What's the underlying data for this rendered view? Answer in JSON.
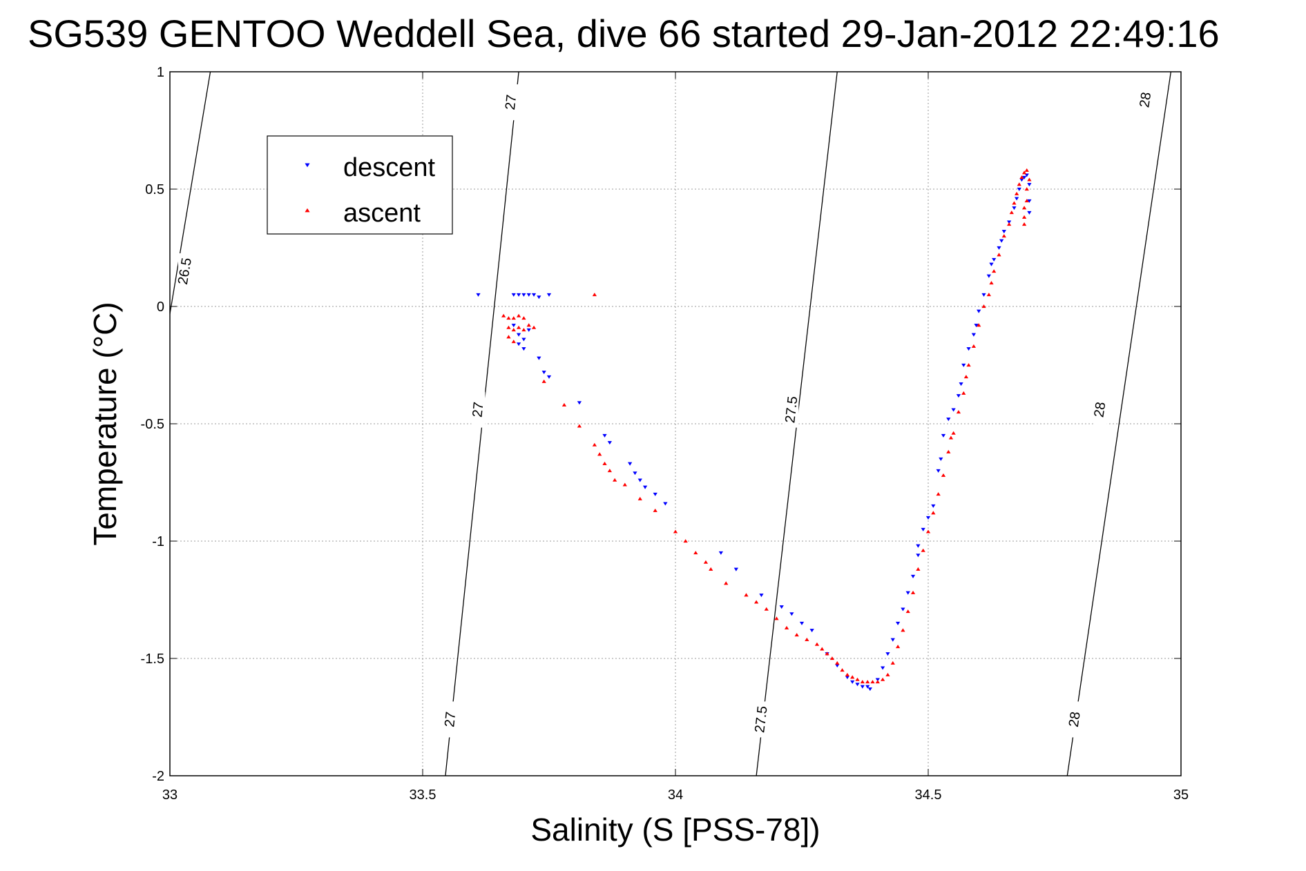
{
  "chart_data": {
    "type": "scatter",
    "title": "SG539 GENTOO Weddell Sea, dive 66 started 29-Jan-2012 22:49:16",
    "xlabel": "Salinity (S [PSS-78])",
    "ylabel": "Temperature (°C)",
    "xlim": [
      33,
      35
    ],
    "ylim": [
      -2,
      1
    ],
    "xticks": [
      33,
      33.5,
      34,
      34.5,
      35
    ],
    "xtick_labels": [
      "33",
      "33.5",
      "34",
      "34.5",
      "35"
    ],
    "yticks": [
      -2,
      -1.5,
      -1,
      -0.5,
      0,
      0.5,
      1
    ],
    "ytick_labels": [
      "-2",
      "-1.5",
      "-1",
      "-0.5",
      "0",
      "0.5",
      "1"
    ],
    "grid": true,
    "legend_position": "top-left",
    "density_contours": [
      {
        "level": "26.5",
        "points": [
          [
            33.08,
            1.0
          ],
          [
            32.99,
            -0.16
          ]
        ],
        "labels": [
          {
            "x": 33.03,
            "y": 0.15
          }
        ]
      },
      {
        "level": "27",
        "points": [
          [
            33.69,
            1.0
          ],
          [
            33.545,
            -2.0
          ]
        ],
        "labels": [
          {
            "x": 33.675,
            "y": 0.87
          },
          {
            "x": 33.61,
            "y": -0.44
          },
          {
            "x": 33.555,
            "y": -1.76
          }
        ]
      },
      {
        "level": "27.5",
        "points": [
          [
            34.32,
            1.0
          ],
          [
            34.16,
            -2.0
          ]
        ],
        "labels": [
          {
            "x": 34.23,
            "y": -0.44
          },
          {
            "x": 34.17,
            "y": -1.76
          }
        ]
      },
      {
        "level": "28",
        "points": [
          [
            34.98,
            1.0
          ],
          [
            34.775,
            -2.0
          ]
        ],
        "labels": [
          {
            "x": 34.93,
            "y": 0.88
          },
          {
            "x": 34.84,
            "y": -0.44
          },
          {
            "x": 34.79,
            "y": -1.76
          }
        ]
      }
    ],
    "series": [
      {
        "name": "descent",
        "color": "#0000ff",
        "marker": "triangle-down",
        "points": [
          [
            33.61,
            0.05
          ],
          [
            33.68,
            0.05
          ],
          [
            33.69,
            0.05
          ],
          [
            33.7,
            0.05
          ],
          [
            33.71,
            0.05
          ],
          [
            33.72,
            0.05
          ],
          [
            33.73,
            0.04
          ],
          [
            33.75,
            0.05
          ],
          [
            33.68,
            -0.08
          ],
          [
            33.69,
            -0.12
          ],
          [
            33.69,
            -0.16
          ],
          [
            33.7,
            -0.18
          ],
          [
            33.7,
            -0.14
          ],
          [
            33.71,
            -0.1
          ],
          [
            33.73,
            -0.22
          ],
          [
            33.74,
            -0.28
          ],
          [
            33.75,
            -0.3
          ],
          [
            33.81,
            -0.41
          ],
          [
            33.86,
            -0.55
          ],
          [
            33.87,
            -0.58
          ],
          [
            33.91,
            -0.67
          ],
          [
            33.92,
            -0.71
          ],
          [
            33.93,
            -0.74
          ],
          [
            33.94,
            -0.77
          ],
          [
            33.96,
            -0.8
          ],
          [
            33.98,
            -0.84
          ],
          [
            34.09,
            -1.05
          ],
          [
            34.12,
            -1.12
          ],
          [
            34.17,
            -1.23
          ],
          [
            34.21,
            -1.28
          ],
          [
            34.23,
            -1.31
          ],
          [
            34.25,
            -1.35
          ],
          [
            34.27,
            -1.38
          ],
          [
            34.3,
            -1.48
          ],
          [
            34.32,
            -1.53
          ],
          [
            34.34,
            -1.58
          ],
          [
            34.35,
            -1.6
          ],
          [
            34.36,
            -1.61
          ],
          [
            34.37,
            -1.62
          ],
          [
            34.38,
            -1.62
          ],
          [
            34.385,
            -1.63
          ],
          [
            34.4,
            -1.59
          ],
          [
            34.41,
            -1.54
          ],
          [
            34.42,
            -1.48
          ],
          [
            34.43,
            -1.42
          ],
          [
            34.44,
            -1.35
          ],
          [
            34.45,
            -1.29
          ],
          [
            34.46,
            -1.22
          ],
          [
            34.47,
            -1.15
          ],
          [
            34.48,
            -1.06
          ],
          [
            34.48,
            -1.02
          ],
          [
            34.49,
            -0.95
          ],
          [
            34.5,
            -0.9
          ],
          [
            34.51,
            -0.85
          ],
          [
            34.52,
            -0.7
          ],
          [
            34.525,
            -0.65
          ],
          [
            34.53,
            -0.55
          ],
          [
            34.54,
            -0.48
          ],
          [
            34.55,
            -0.44
          ],
          [
            34.56,
            -0.38
          ],
          [
            34.565,
            -0.33
          ],
          [
            34.57,
            -0.25
          ],
          [
            34.58,
            -0.18
          ],
          [
            34.59,
            -0.12
          ],
          [
            34.595,
            -0.08
          ],
          [
            34.6,
            -0.02
          ],
          [
            34.61,
            0.05
          ],
          [
            34.62,
            0.13
          ],
          [
            34.625,
            0.18
          ],
          [
            34.63,
            0.2
          ],
          [
            34.64,
            0.25
          ],
          [
            34.645,
            0.28
          ],
          [
            34.65,
            0.32
          ],
          [
            34.66,
            0.36
          ],
          [
            34.67,
            0.42
          ],
          [
            34.675,
            0.46
          ],
          [
            34.68,
            0.5
          ],
          [
            34.685,
            0.54
          ],
          [
            34.69,
            0.55
          ],
          [
            34.695,
            0.56
          ],
          [
            34.7,
            0.52
          ],
          [
            34.7,
            0.45
          ],
          [
            34.7,
            0.4
          ]
        ]
      },
      {
        "name": "ascent",
        "color": "#ff0000",
        "marker": "triangle-up",
        "points": [
          [
            33.84,
            0.05
          ],
          [
            33.66,
            -0.04
          ],
          [
            33.67,
            -0.05
          ],
          [
            33.68,
            -0.05
          ],
          [
            33.69,
            -0.04
          ],
          [
            33.7,
            -0.05
          ],
          [
            33.67,
            -0.09
          ],
          [
            33.68,
            -0.1
          ],
          [
            33.69,
            -0.09
          ],
          [
            33.7,
            -0.1
          ],
          [
            33.71,
            -0.08
          ],
          [
            33.72,
            -0.09
          ],
          [
            33.67,
            -0.13
          ],
          [
            33.68,
            -0.15
          ],
          [
            33.74,
            -0.32
          ],
          [
            33.78,
            -0.42
          ],
          [
            33.81,
            -0.51
          ],
          [
            33.84,
            -0.59
          ],
          [
            33.85,
            -0.63
          ],
          [
            33.86,
            -0.67
          ],
          [
            33.87,
            -0.7
          ],
          [
            33.88,
            -0.74
          ],
          [
            33.9,
            -0.76
          ],
          [
            33.93,
            -0.82
          ],
          [
            33.96,
            -0.87
          ],
          [
            34.0,
            -0.96
          ],
          [
            34.02,
            -1.0
          ],
          [
            34.04,
            -1.05
          ],
          [
            34.06,
            -1.09
          ],
          [
            34.07,
            -1.12
          ],
          [
            34.1,
            -1.18
          ],
          [
            34.14,
            -1.23
          ],
          [
            34.16,
            -1.26
          ],
          [
            34.18,
            -1.29
          ],
          [
            34.2,
            -1.33
          ],
          [
            34.22,
            -1.37
          ],
          [
            34.24,
            -1.4
          ],
          [
            34.26,
            -1.42
          ],
          [
            34.28,
            -1.44
          ],
          [
            34.29,
            -1.46
          ],
          [
            34.3,
            -1.48
          ],
          [
            34.31,
            -1.5
          ],
          [
            34.32,
            -1.52
          ],
          [
            34.33,
            -1.55
          ],
          [
            34.34,
            -1.57
          ],
          [
            34.35,
            -1.58
          ],
          [
            34.36,
            -1.59
          ],
          [
            34.37,
            -1.6
          ],
          [
            34.38,
            -1.6
          ],
          [
            34.39,
            -1.6
          ],
          [
            34.4,
            -1.6
          ],
          [
            34.41,
            -1.59
          ],
          [
            34.42,
            -1.57
          ],
          [
            34.43,
            -1.52
          ],
          [
            34.44,
            -1.45
          ],
          [
            34.45,
            -1.38
          ],
          [
            34.46,
            -1.3
          ],
          [
            34.47,
            -1.22
          ],
          [
            34.48,
            -1.12
          ],
          [
            34.49,
            -1.04
          ],
          [
            34.5,
            -0.96
          ],
          [
            34.51,
            -0.88
          ],
          [
            34.52,
            -0.8
          ],
          [
            34.53,
            -0.72
          ],
          [
            34.54,
            -0.62
          ],
          [
            34.545,
            -0.56
          ],
          [
            34.55,
            -0.54
          ],
          [
            34.56,
            -0.45
          ],
          [
            34.57,
            -0.37
          ],
          [
            34.575,
            -0.3
          ],
          [
            34.58,
            -0.25
          ],
          [
            34.59,
            -0.17
          ],
          [
            34.6,
            -0.08
          ],
          [
            34.61,
            0.0
          ],
          [
            34.62,
            0.05
          ],
          [
            34.625,
            0.1
          ],
          [
            34.63,
            0.15
          ],
          [
            34.64,
            0.22
          ],
          [
            34.65,
            0.3
          ],
          [
            34.66,
            0.35
          ],
          [
            34.665,
            0.4
          ],
          [
            34.67,
            0.44
          ],
          [
            34.675,
            0.48
          ],
          [
            34.68,
            0.52
          ],
          [
            34.685,
            0.55
          ],
          [
            34.69,
            0.57
          ],
          [
            34.695,
            0.58
          ],
          [
            34.7,
            0.54
          ],
          [
            34.695,
            0.5
          ],
          [
            34.695,
            0.45
          ],
          [
            34.69,
            0.42
          ],
          [
            34.69,
            0.38
          ],
          [
            34.69,
            0.35
          ]
        ]
      }
    ]
  }
}
